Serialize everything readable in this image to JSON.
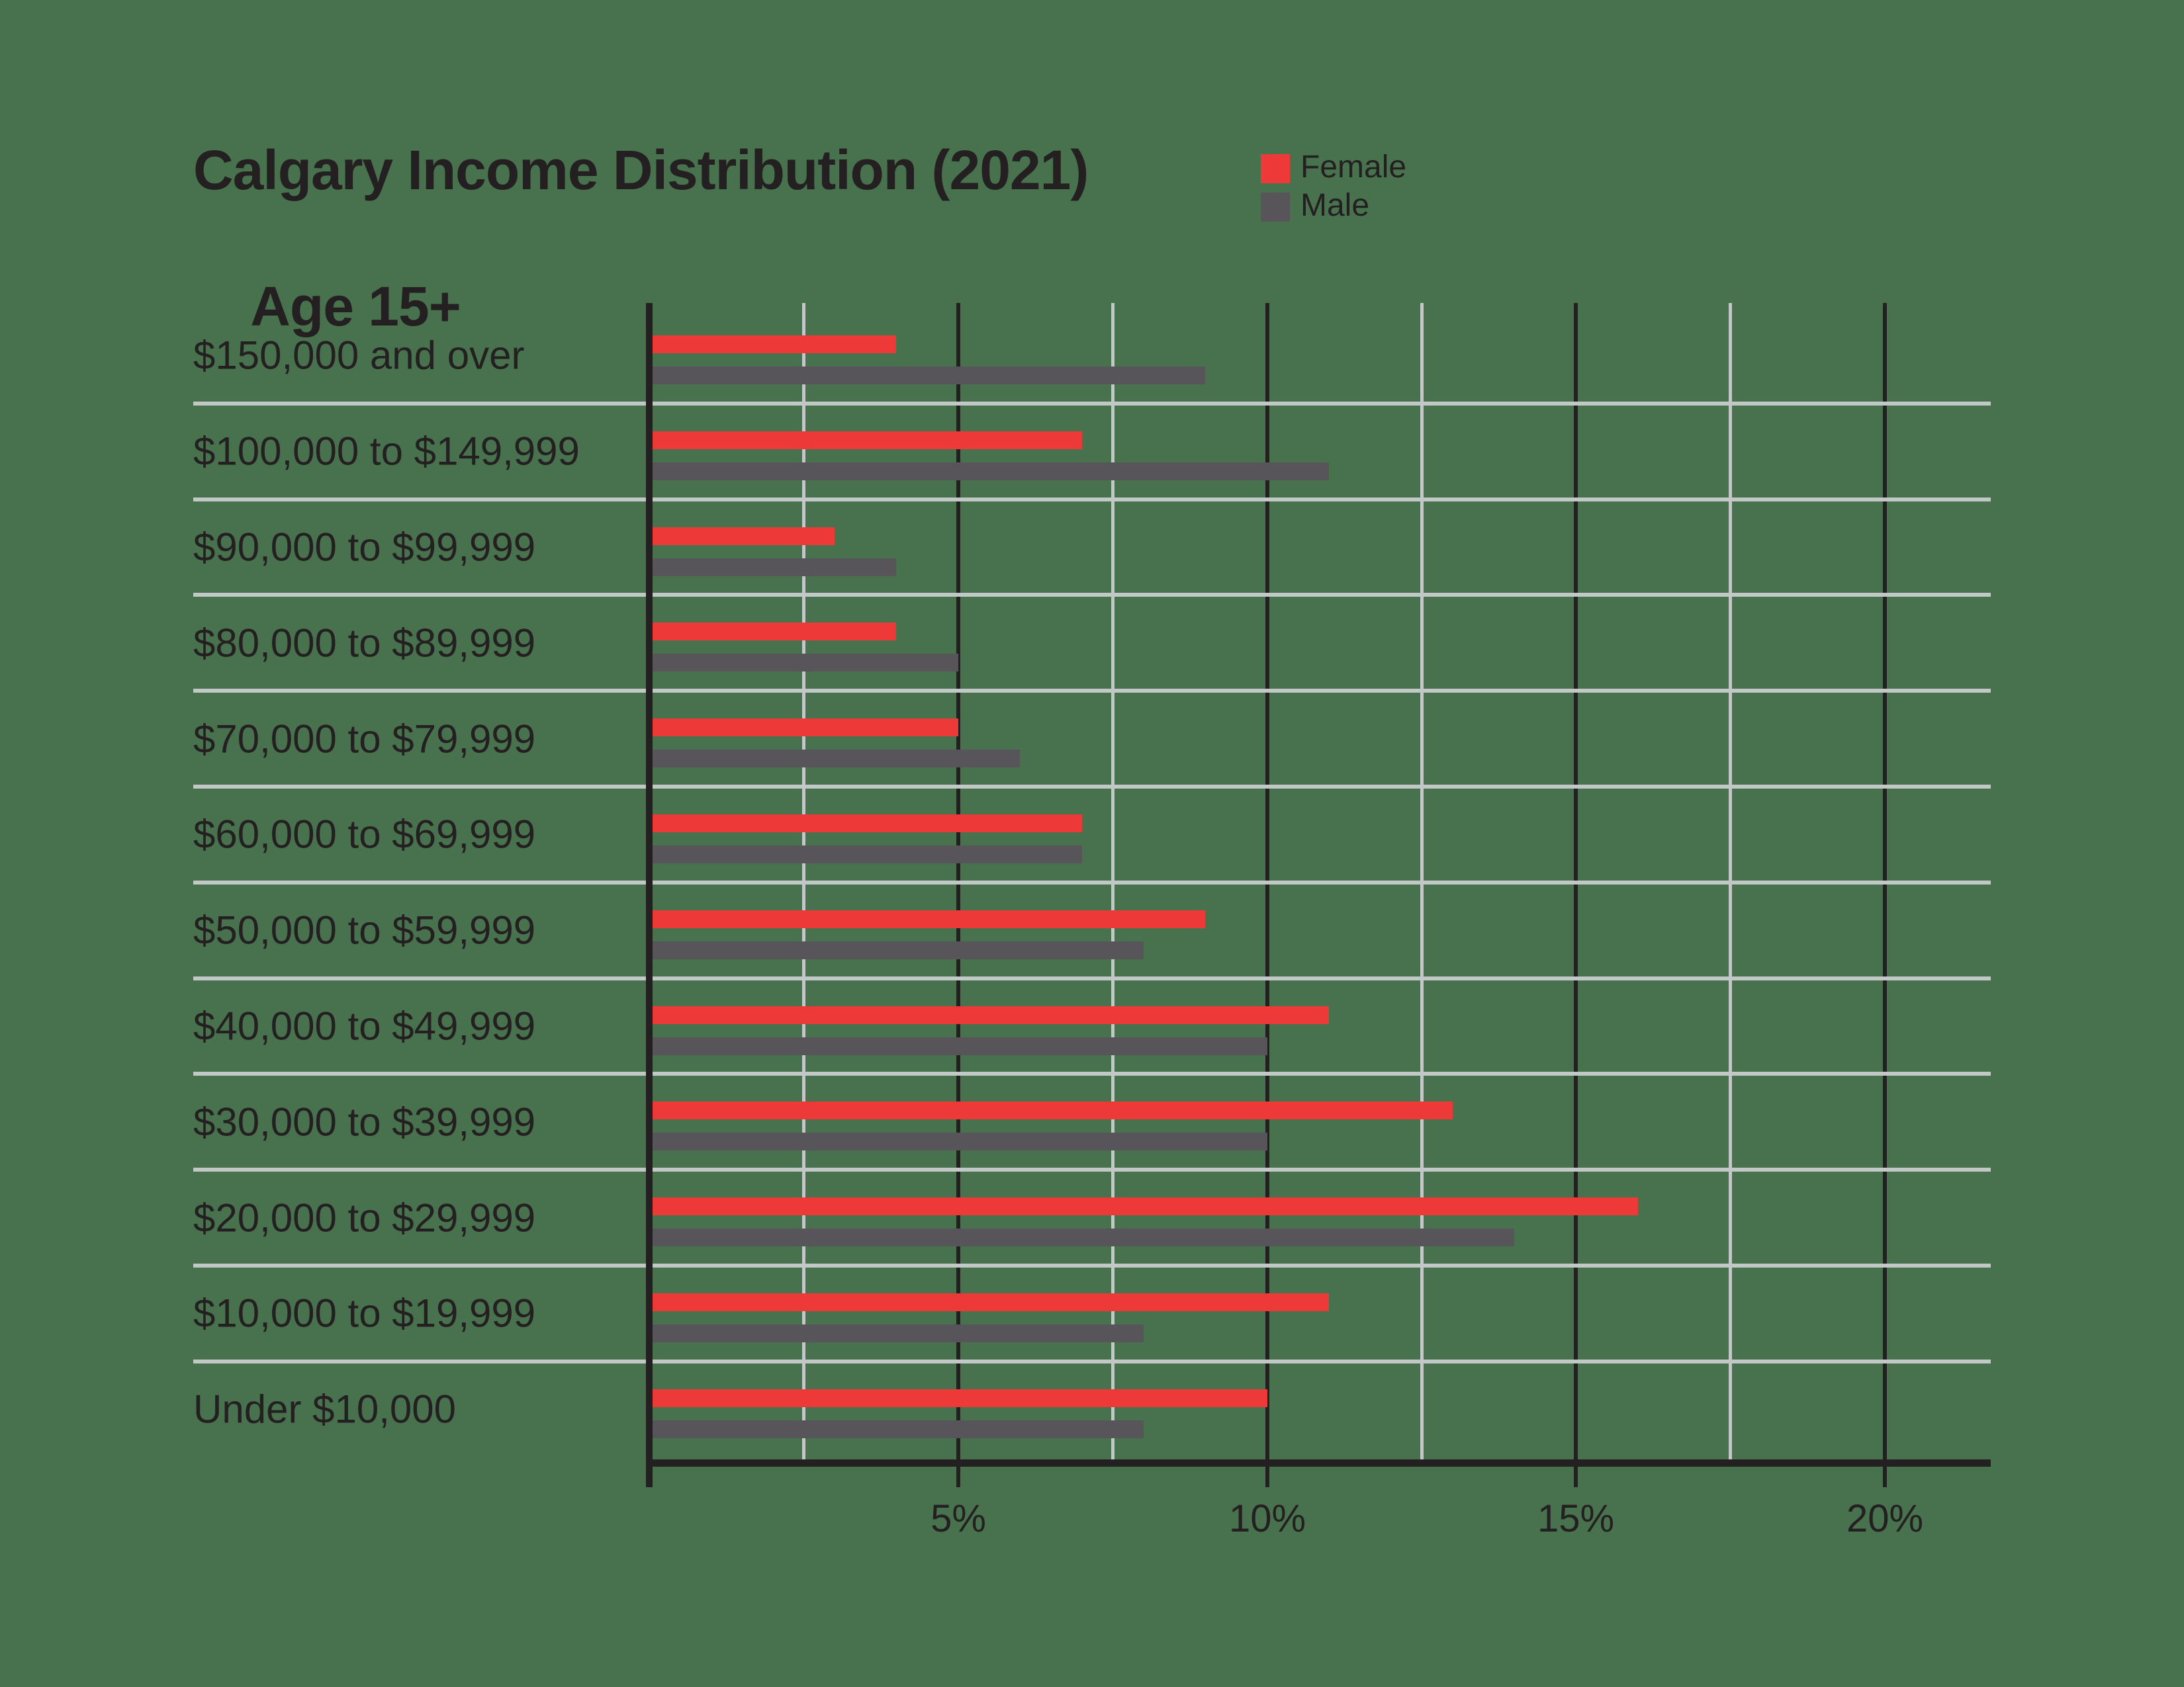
{
  "title": {
    "line1": "Calgary Income Distribution (2021)",
    "line2": "Age 15+"
  },
  "legend": {
    "items": [
      {
        "label": "Female",
        "color": "#ee3939"
      },
      {
        "label": "Male",
        "color": "#58555a"
      }
    ]
  },
  "colors": {
    "background": "#48724e",
    "female_bar": "#ee3939",
    "male_bar": "#58555a",
    "text": "#242021",
    "grid_major": "#242021",
    "grid_minor": "#c2c8c5",
    "row_separator": "#c2c8c5",
    "axis": "#242021"
  },
  "chart_data": {
    "type": "bar",
    "orientation": "horizontal",
    "title": "Calgary Income Distribution (2021) Age 15+",
    "value_unit": "%",
    "xlim": [
      0,
      21.7
    ],
    "grid": {
      "major_ticks_pct": [
        5,
        10,
        15,
        20
      ],
      "minor_ticks_pct": [
        2.5,
        7.5,
        12.5,
        17.5
      ],
      "legend_position": "top-right"
    },
    "x_tick_labels": [
      "5%",
      "10%",
      "15%",
      "20%"
    ],
    "categories": [
      "$150,000 and over",
      "$100,000 to $149,999",
      "$90,000 to $99,999",
      "$80,000 to $89,999",
      "$70,000 to $79,999",
      "$60,000 to $69,999",
      "$50,000 to $59,999",
      "$40,000 to $49,999",
      "$30,000 to $39,999",
      "$20,000 to $29,999",
      "$10,000 to $19,999",
      "Under $10,000"
    ],
    "series": [
      {
        "name": "Female",
        "values": [
          4,
          7,
          3,
          4,
          5,
          7,
          9,
          11,
          13,
          16,
          11,
          10
        ]
      },
      {
        "name": "Male",
        "values": [
          9,
          11,
          4,
          5,
          6,
          7,
          8,
          10,
          10,
          14,
          8,
          8
        ]
      }
    ]
  }
}
